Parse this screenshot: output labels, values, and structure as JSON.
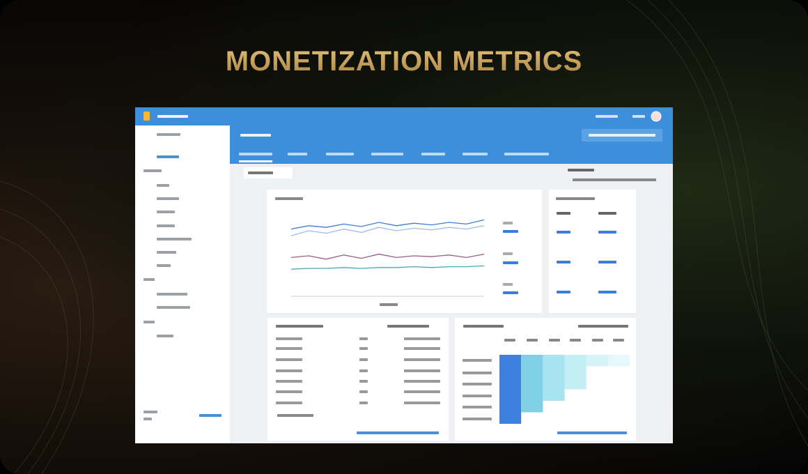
{
  "title": "MONETIZATION METRICS",
  "dashboard": {
    "line_chart": {
      "ylim": [
        0,
        100
      ],
      "series": [
        {
          "color": "#3b7dd8",
          "values": [
            72,
            76,
            74,
            78,
            75,
            80,
            76,
            79,
            77,
            80,
            78,
            83
          ]
        },
        {
          "color": "#9fbce8",
          "values": [
            64,
            70,
            67,
            72,
            68,
            74,
            70,
            73,
            71,
            74,
            72,
            76
          ]
        },
        {
          "color": "#9a5a8a",
          "values": [
            38,
            40,
            36,
            41,
            37,
            42,
            38,
            40,
            39,
            41,
            38,
            42
          ]
        },
        {
          "color": "#4aa6b4",
          "values": [
            24,
            25,
            25,
            26,
            25,
            26,
            26,
            27,
            26,
            27,
            27,
            28
          ]
        }
      ]
    }
  }
}
